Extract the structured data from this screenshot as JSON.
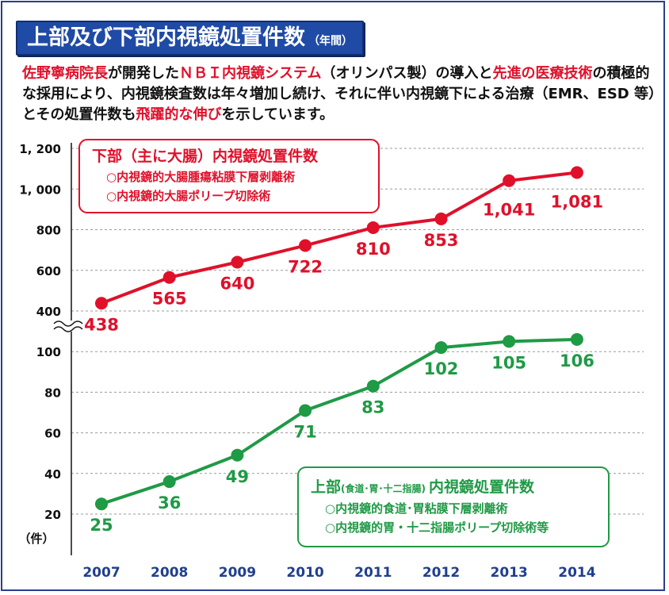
{
  "header": {
    "title": "上部及び下部内視鏡処置件数",
    "title_suffix": "（年間）"
  },
  "intro": {
    "segments": [
      {
        "text": "佐野寧病院長",
        "style": "red"
      },
      {
        "text": "が開発した",
        "style": "normal"
      },
      {
        "text": "ＮＢＩ内視鏡システム",
        "style": "red"
      },
      {
        "text": "（オリンパス製）の導入と",
        "style": "normal"
      },
      {
        "text": "先進の医療技術",
        "style": "red"
      },
      {
        "text": "の積極的な採用により、内視鏡検査数は年々増加し続け、それに伴い内視鏡下による治療（EMR、ESD 等）とその処置件数も",
        "style": "normal"
      },
      {
        "text": "飛躍的な伸び",
        "style": "red"
      },
      {
        "text": "を示しています。",
        "style": "normal"
      }
    ]
  },
  "legend_lower": {
    "title": "下部（主に大腸）内視鏡処置件数",
    "items": [
      "○内視鏡的大腸腫瘍粘膜下層剥離術",
      "○内視鏡的大腸ポリープ切除術"
    ]
  },
  "legend_upper": {
    "title": "上部",
    "title_note": "(食道･胃･十二指腸)",
    "title_tail": "内視鏡処置件数",
    "items": [
      "○内視鏡的食道･胃粘膜下層剥離術",
      "○内視鏡的胃・十二指腸ポリープ切除術等"
    ]
  },
  "colors": {
    "lower": "#e0102a",
    "upper": "#1f9a45",
    "title_bg": "#1f4aa6",
    "year_label": "#1f3f8f"
  },
  "chart_data": {
    "type": "line",
    "x": [
      "2007",
      "2008",
      "2009",
      "2010",
      "2011",
      "2012",
      "2013",
      "2014"
    ],
    "yticks_upper_segment": [
      "1, 200",
      "1, 000",
      "800",
      "600",
      "400"
    ],
    "yticks_lower_segment": [
      "100",
      "80",
      "60",
      "40",
      "20"
    ],
    "y_unit": "（件）",
    "axis_break": "between 400 and 100",
    "grid": true,
    "series": [
      {
        "name": "下部（主に大腸）内視鏡処置件数",
        "key": "lower",
        "values": [
          438,
          565,
          640,
          722,
          810,
          853,
          1041,
          1081
        ],
        "labels": [
          "438",
          "565",
          "640",
          "722",
          "810",
          "853",
          "1,041",
          "1,081"
        ]
      },
      {
        "name": "上部(食道･胃･十二指腸)内視鏡処置件数",
        "key": "upper",
        "values": [
          25,
          36,
          49,
          71,
          83,
          102,
          105,
          106
        ],
        "labels": [
          "25",
          "36",
          "49",
          "71",
          "83",
          "102",
          "105",
          "106"
        ]
      }
    ]
  }
}
